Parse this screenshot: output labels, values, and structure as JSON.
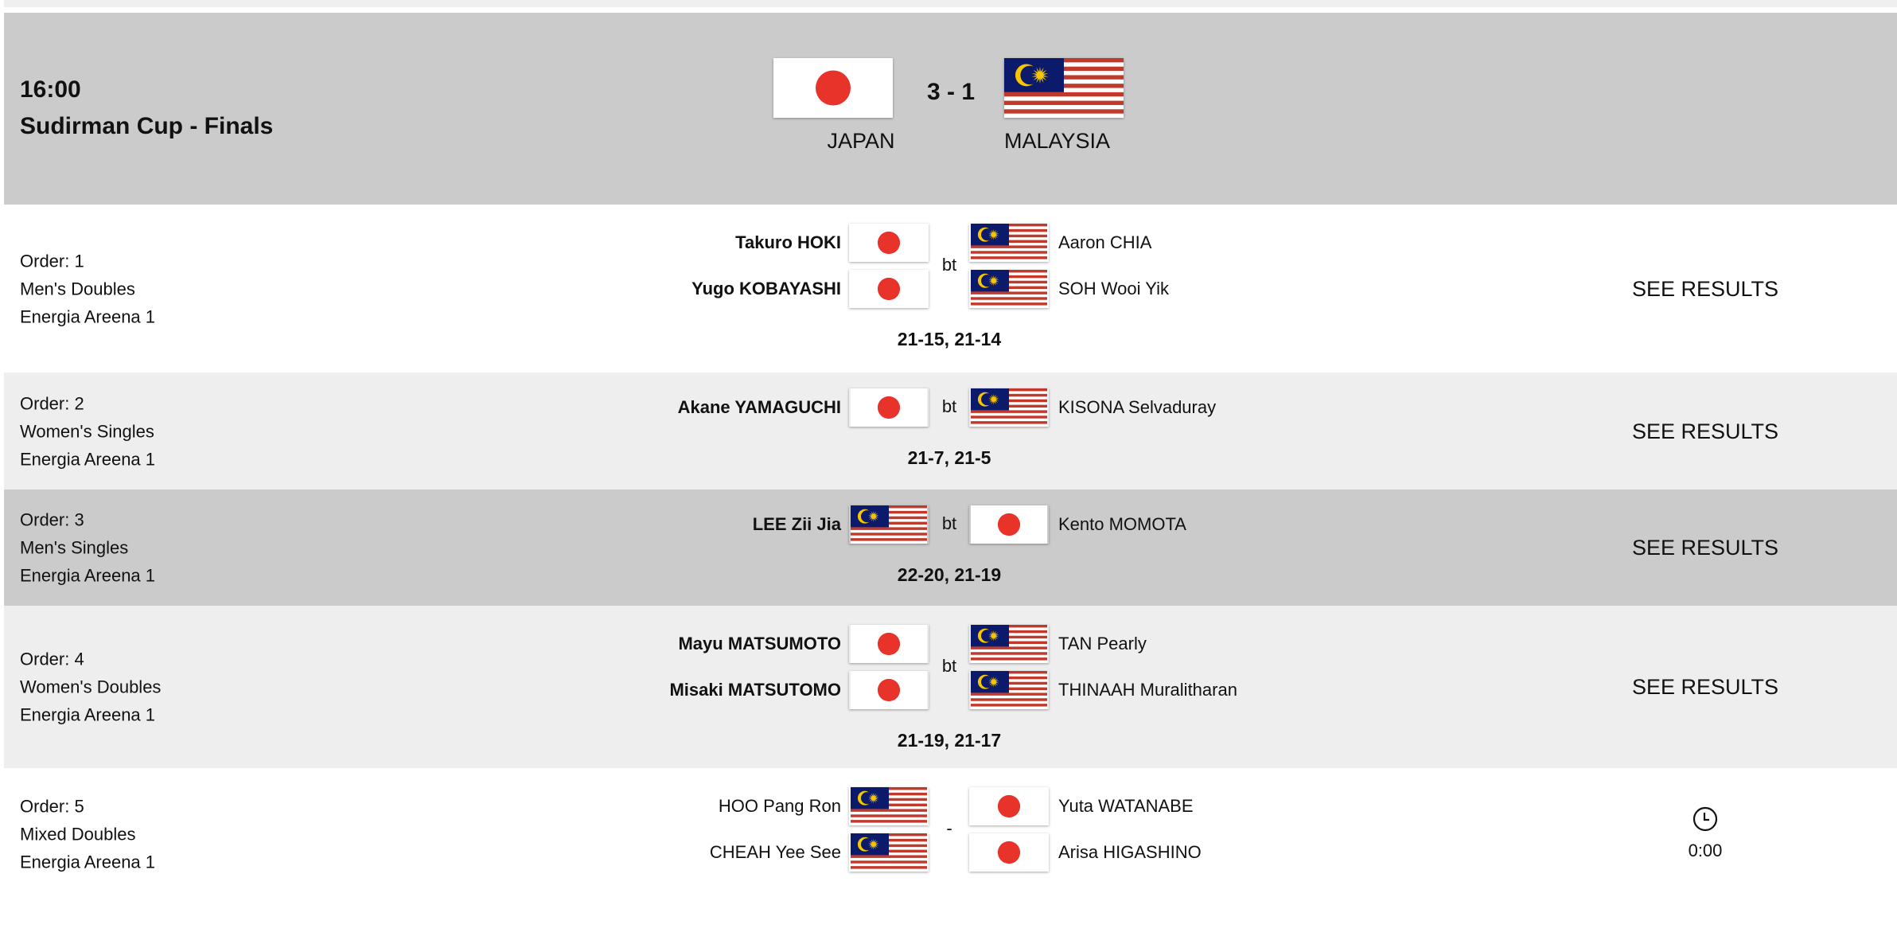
{
  "header": {
    "time": "16:00",
    "title": "Sudirman Cup - Finals",
    "score": "3 - 1",
    "team_left": {
      "name": "JAPAN",
      "flag": "japan"
    },
    "team_right": {
      "name": "MALAYSIA",
      "flag": "malaysia"
    }
  },
  "colors": {
    "header_bg": "#cbcbcb",
    "alt_row_bg": "#eeeeee",
    "japan_red": "#e8332a",
    "malaysia_blue": "#0b1a6b",
    "malaysia_red": "#c0392b",
    "malaysia_yellow": "#f7c600"
  },
  "matches": [
    {
      "order": "Order: 1",
      "event": "Men's Doubles",
      "venue": "Energia Areena 1",
      "left": {
        "flag": "japan",
        "winner": true,
        "players": [
          "Takuro HOKI",
          "Yugo KOBAYASHI"
        ]
      },
      "separator": "bt",
      "right": {
        "flag": "malaysia",
        "winner": false,
        "players": [
          "Aaron CHIA",
          "SOH Wooi Yik"
        ]
      },
      "score": "21-15, 21-14",
      "action": "SEE RESULTS",
      "bg": "#ffffff"
    },
    {
      "order": "Order: 2",
      "event": "Women's Singles",
      "venue": "Energia Areena 1",
      "left": {
        "flag": "japan",
        "winner": true,
        "players": [
          "Akane YAMAGUCHI"
        ]
      },
      "separator": "bt",
      "right": {
        "flag": "malaysia",
        "winner": false,
        "players": [
          "KISONA Selvaduray"
        ]
      },
      "score": "21-7, 21-5",
      "action": "SEE RESULTS",
      "bg": "#eeeeee"
    },
    {
      "order": "Order: 3",
      "event": "Men's Singles",
      "venue": "Energia Areena 1",
      "left": {
        "flag": "malaysia",
        "winner": true,
        "players": [
          "LEE Zii Jia"
        ]
      },
      "separator": "bt",
      "right": {
        "flag": "japan",
        "winner": false,
        "players": [
          "Kento MOMOTA"
        ]
      },
      "score": "22-20, 21-19",
      "action": "SEE RESULTS",
      "bg": "#cbcbcb"
    },
    {
      "order": "Order: 4",
      "event": "Women's Doubles",
      "venue": "Energia Areena 1",
      "left": {
        "flag": "japan",
        "winner": true,
        "players": [
          "Mayu MATSUMOTO",
          "Misaki MATSUTOMO"
        ]
      },
      "separator": "bt",
      "right": {
        "flag": "malaysia",
        "winner": false,
        "players": [
          "TAN Pearly",
          "THINAAH Muralitharan"
        ]
      },
      "score": "21-19, 21-17",
      "action": "SEE RESULTS",
      "bg": "#eeeeee"
    },
    {
      "order": "Order: 5",
      "event": "Mixed Doubles",
      "venue": "Energia Areena 1",
      "left": {
        "flag": "malaysia",
        "winner": false,
        "players": [
          "HOO Pang Ron",
          "CHEAH Yee See"
        ]
      },
      "separator": "-",
      "right": {
        "flag": "japan",
        "winner": false,
        "players": [
          "Yuta WATANABE",
          "Arisa HIGASHINO"
        ]
      },
      "score": "",
      "timer": "0:00",
      "timer_icon": "clock-icon",
      "bg": "#ffffff"
    }
  ]
}
